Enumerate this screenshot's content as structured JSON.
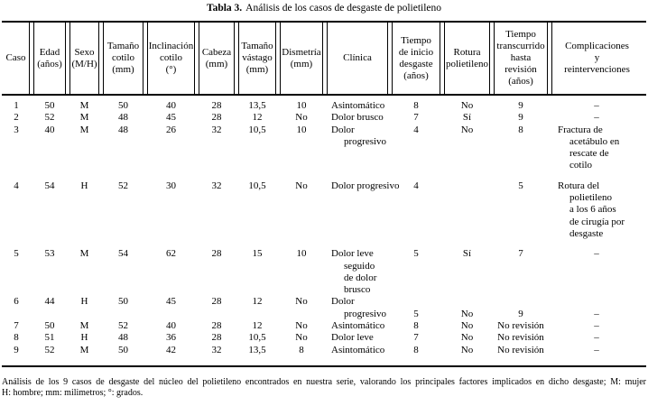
{
  "title": {
    "bold": "Tabla 3.",
    "rest": "Análisis de los casos de desgaste de polietileno"
  },
  "table": {
    "headers": [
      "Caso",
      "Edad\n(años)",
      "Sexo\n(M/H)",
      "Tamaño\ncotilo\n(mm)",
      "Inclinación\ncotilo\n(°)",
      "Cabeza\n(mm)",
      "Tamaño\nvástago\n(mm)",
      "Dismetría\n(mm)",
      "Clínica",
      "Tiempo\nde inicio\ndesgaste\n(años)",
      "Rotura\npolietileno",
      "Tiempo\ntranscurrido\nhasta\nrevisión\n(años)",
      "Complicaciones\ny\nreintervenciones"
    ],
    "rows": [
      {
        "cells": [
          "1",
          "50",
          "M",
          "50",
          "40",
          "28",
          "13,5",
          "10",
          "Asintomático",
          "8",
          "No",
          "9",
          "–"
        ]
      },
      {
        "cells": [
          "2",
          "52",
          "M",
          "48",
          "45",
          "28",
          "12",
          "No",
          "Dolor brusco",
          "7",
          "Sí",
          "9",
          "–"
        ]
      },
      {
        "cells": [
          "3",
          "40",
          "M",
          "48",
          "26",
          "32",
          "10,5",
          "10",
          "Dolor\nprogresivo",
          "4",
          "No",
          "8",
          "Fractura de\nacetábulo en\nrescate de\ncotilo"
        ]
      },
      {
        "cells": [
          "4",
          "54",
          "H",
          "52",
          "30",
          "32",
          "10,5",
          "No",
          "Dolor progresivo",
          "4",
          "",
          "5",
          "Rotura del\npolietileno\na los 6 años\nde cirugía por\ndesgaste"
        ]
      },
      {
        "cells": [
          "5",
          "53",
          "M",
          "54",
          "62",
          "28",
          "15",
          "10",
          "Dolor leve\nseguido\nde dolor\nbrusco",
          "5",
          "Sí",
          "7",
          "–"
        ]
      },
      {
        "cells": [
          "6",
          "44",
          "H",
          "50",
          "45",
          "28",
          "12",
          "No",
          "Dolor\nprogresivo",
          "5",
          "No",
          "9",
          "–"
        ]
      },
      {
        "cells": [
          "7",
          "50",
          "M",
          "52",
          "40",
          "28",
          "12",
          "No",
          "Asintomático",
          "8",
          "No",
          "No revisión",
          "–"
        ]
      },
      {
        "cells": [
          "8",
          "51",
          "H",
          "48",
          "36",
          "28",
          "10,5",
          "No",
          "Dolor leve",
          "7",
          "No",
          "No revisión",
          "–"
        ]
      },
      {
        "cells": [
          "9",
          "52",
          "M",
          "50",
          "42",
          "32",
          "13,5",
          "8",
          "Asintomático",
          "8",
          "No",
          "No revisión",
          "–"
        ]
      }
    ]
  },
  "footnote": {
    "line1": "Análisis de los 9 casos de desgaste del núcleo del polietileno encontrados en nuestra serie, valorando los principales factores implicados en dicho desgaste; M: mujer",
    "line2": "H: hombre; mm: milimetros; °: grados."
  }
}
